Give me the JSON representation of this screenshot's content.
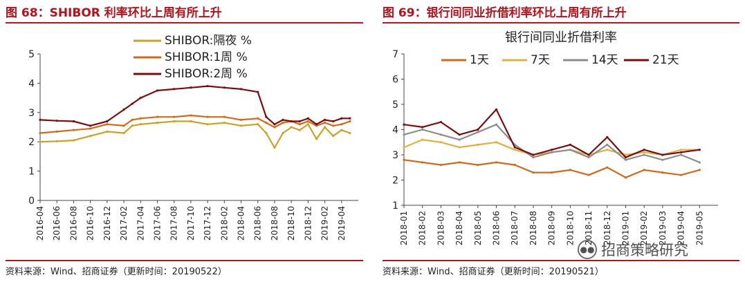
{
  "left": {
    "fig_title": "图 68：SHIBOR 利率环比上周有所上升",
    "source": "资料来源：Wind、招商证券（更新时间：20190522）"
  },
  "right": {
    "fig_title": "图 69：银行间同业折借利率环比上周有所上升",
    "source": "资料来源：Wind、招商证券（更新时间：20190521）"
  },
  "watermark": {
    "text": "招商策略研究",
    "icon": "wechat-icon"
  },
  "chart_data": [
    {
      "type": "line",
      "title": "",
      "ylim": [
        0,
        5
      ],
      "yticks": [
        0,
        1,
        2,
        3,
        4,
        5
      ],
      "grid": false,
      "legend": "top-left",
      "xtick_labels": [
        "2016-04",
        "2016-06",
        "2016-08",
        "2016-10",
        "2016-12",
        "2017-02",
        "2017-04",
        "2017-06",
        "2017-08",
        "2017-10",
        "2017-12",
        "2018-02",
        "2018-04",
        "2018-06",
        "2018-08",
        "2018-10",
        "2018-12",
        "2019-02",
        "2019-04"
      ],
      "x": [
        "2016-04",
        "2016-06",
        "2016-08",
        "2016-10",
        "2016-12",
        "2017-02",
        "2017-03",
        "2017-04",
        "2017-06",
        "2017-08",
        "2017-10",
        "2017-12",
        "2018-02",
        "2018-04",
        "2018-06",
        "2018-07",
        "2018-08",
        "2018-09",
        "2018-10",
        "2018-11",
        "2018-12",
        "2019-01",
        "2019-02",
        "2019-03",
        "2019-04",
        "2019-05"
      ],
      "series": [
        {
          "name": "SHIBOR:隔夜 %",
          "color": "#c9a227",
          "values": [
            2.0,
            2.02,
            2.05,
            2.2,
            2.35,
            2.3,
            2.55,
            2.6,
            2.65,
            2.7,
            2.7,
            2.6,
            2.65,
            2.55,
            2.6,
            2.3,
            1.8,
            2.3,
            2.5,
            2.4,
            2.6,
            2.1,
            2.5,
            2.2,
            2.4,
            2.3
          ]
        },
        {
          "name": "SHIBOR:1周 %",
          "color": "#d06a1b",
          "values": [
            2.3,
            2.35,
            2.4,
            2.45,
            2.6,
            2.55,
            2.75,
            2.8,
            2.85,
            2.85,
            2.9,
            2.85,
            2.85,
            2.75,
            2.8,
            2.65,
            2.5,
            2.65,
            2.7,
            2.6,
            2.7,
            2.55,
            2.65,
            2.55,
            2.6,
            2.7
          ]
        },
        {
          "name": "SHIBOR:2周 %",
          "color": "#7b0c0c",
          "values": [
            2.75,
            2.72,
            2.7,
            2.55,
            2.7,
            3.1,
            3.3,
            3.5,
            3.75,
            3.8,
            3.85,
            3.9,
            3.85,
            3.8,
            3.7,
            2.85,
            2.6,
            2.75,
            2.7,
            2.7,
            2.8,
            2.6,
            2.75,
            2.7,
            2.8,
            2.8
          ]
        }
      ]
    },
    {
      "type": "line",
      "title": "银行间同业折借利率",
      "ylim": [
        1,
        7
      ],
      "yticks": [
        1,
        2,
        3,
        4,
        5,
        6,
        7
      ],
      "grid": false,
      "legend": "top",
      "xtick_labels": [
        "2018-01",
        "2018-02",
        "2018-03",
        "2018-04",
        "2018-05",
        "2018-06",
        "2018-07",
        "2018-08",
        "2018-09",
        "2018-10",
        "2018-11",
        "2018-12",
        "2019-01",
        "2019-02",
        "2019-03",
        "2019-04",
        "2019-05"
      ],
      "x": [
        "2018-01",
        "2018-02",
        "2018-03",
        "2018-04",
        "2018-05",
        "2018-06",
        "2018-07",
        "2018-08",
        "2018-09",
        "2018-10",
        "2018-11",
        "2018-12",
        "2019-01",
        "2019-02",
        "2019-03",
        "2019-04",
        "2019-05"
      ],
      "series": [
        {
          "name": "1天",
          "color": "#d06a1b",
          "values": [
            2.8,
            2.7,
            2.6,
            2.7,
            2.6,
            2.7,
            2.6,
            2.3,
            2.3,
            2.4,
            2.2,
            2.5,
            2.1,
            2.4,
            2.3,
            2.2,
            2.4
          ]
        },
        {
          "name": "7天",
          "color": "#e0b040",
          "values": [
            3.3,
            3.6,
            3.5,
            3.3,
            3.4,
            3.5,
            3.2,
            3.0,
            3.1,
            3.2,
            3.0,
            3.2,
            3.0,
            3.1,
            3.0,
            3.2,
            3.2
          ]
        },
        {
          "name": "14天",
          "color": "#8c8c8c",
          "values": [
            3.8,
            4.0,
            3.8,
            3.6,
            3.9,
            4.2,
            3.4,
            2.9,
            3.1,
            3.2,
            2.9,
            3.4,
            2.8,
            3.0,
            2.8,
            3.0,
            2.7
          ]
        },
        {
          "name": "21天",
          "color": "#7b0c0c",
          "values": [
            4.2,
            4.1,
            4.3,
            3.8,
            4.0,
            4.8,
            3.3,
            3.0,
            3.2,
            3.4,
            3.0,
            3.7,
            2.9,
            3.2,
            3.0,
            3.1,
            3.2
          ]
        }
      ]
    }
  ]
}
